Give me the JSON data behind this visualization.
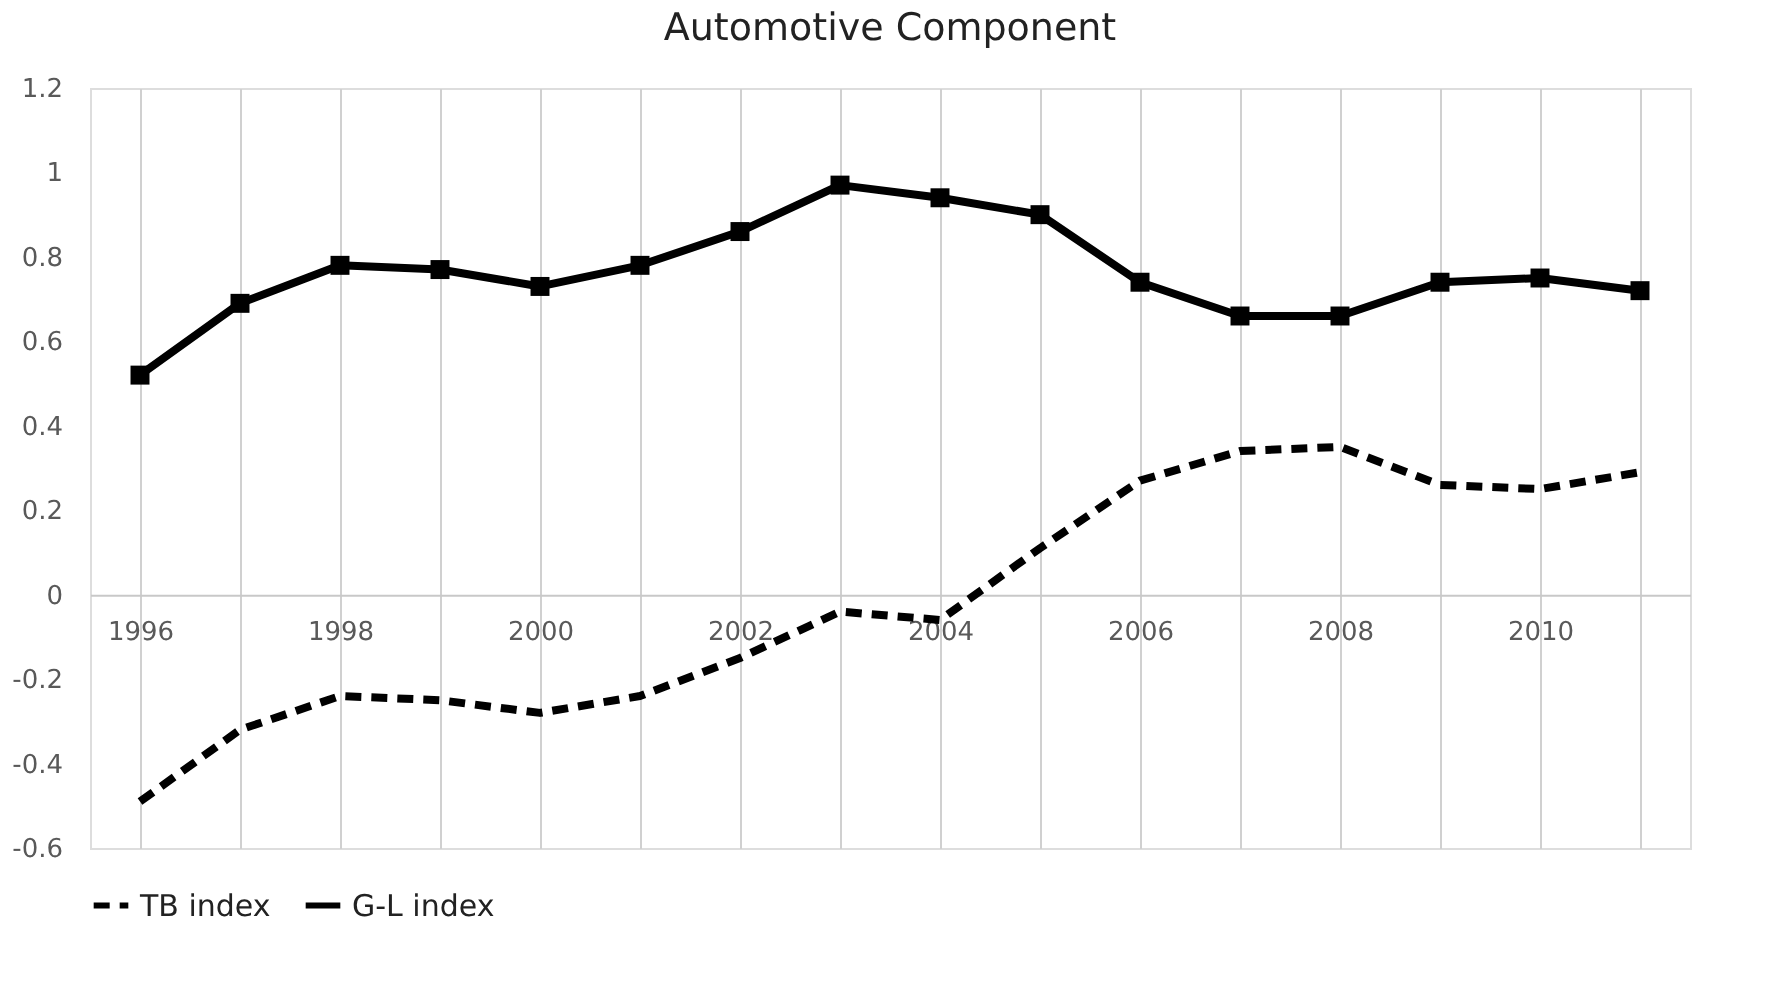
{
  "chart_data": {
    "type": "line",
    "title": "Automotive Component",
    "x": [
      1996,
      1997,
      1998,
      1999,
      2000,
      2001,
      2002,
      2003,
      2004,
      2005,
      2006,
      2007,
      2008,
      2009,
      2010,
      2011
    ],
    "series": [
      {
        "name": "TB index",
        "color": "#000000",
        "line_style": "dashed",
        "marker": "none",
        "values": [
          -0.49,
          -0.32,
          -0.24,
          -0.25,
          -0.28,
          -0.24,
          -0.15,
          -0.04,
          -0.06,
          0.11,
          0.27,
          0.34,
          0.35,
          0.26,
          0.25,
          0.29
        ]
      },
      {
        "name": "G-L index",
        "color": "#000000",
        "line_style": "solid",
        "marker": "square",
        "values": [
          0.52,
          0.69,
          0.78,
          0.77,
          0.73,
          0.78,
          0.86,
          0.97,
          0.94,
          0.9,
          0.74,
          0.66,
          0.66,
          0.74,
          0.75,
          0.72
        ]
      }
    ],
    "xlim": [
      1995.5,
      2011.5
    ],
    "xticks": [
      1996,
      {
        "value": 1997,
        "label": null
      },
      1998,
      {
        "value": 1999,
        "label": null
      },
      2000,
      {
        "value": 2001,
        "label": null
      },
      2002,
      {
        "value": 2003,
        "label": null
      },
      2004,
      {
        "value": 2005,
        "label": null
      },
      2006,
      {
        "value": 2007,
        "label": null
      },
      2008,
      {
        "value": 2009,
        "label": null
      },
      2010,
      {
        "value": 2011,
        "label": null
      }
    ],
    "ylim": [
      -0.6,
      1.2
    ],
    "yticks": [
      -0.6,
      -0.4,
      -0.2,
      0,
      0.2,
      0.4,
      0.6,
      0.8,
      1,
      1.2
    ],
    "grid": "x",
    "legend": "bottom"
  }
}
